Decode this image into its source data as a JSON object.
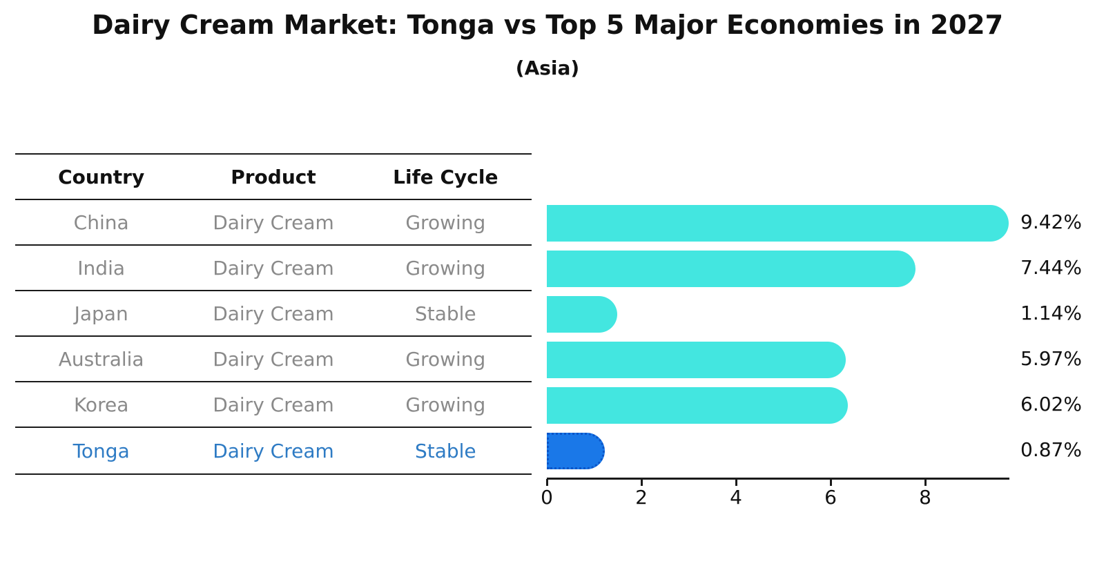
{
  "title": "Dairy Cream Market: Tonga vs Top 5 Major Economies in 2027",
  "subtitle": "(Asia)",
  "table": {
    "headers": [
      "Country",
      "Product",
      "Life Cycle"
    ],
    "rows": [
      {
        "country": "China",
        "product": "Dairy Cream",
        "life_cycle": "Growing",
        "highlight": false
      },
      {
        "country": "India",
        "product": "Dairy Cream",
        "life_cycle": "Growing",
        "highlight": false
      },
      {
        "country": "Japan",
        "product": "Dairy Cream",
        "life_cycle": "Stable",
        "highlight": false
      },
      {
        "country": "Australia",
        "product": "Dairy Cream",
        "life_cycle": "Growing",
        "highlight": false
      },
      {
        "country": "Korea",
        "product": "Dairy Cream",
        "life_cycle": "Growing",
        "highlight": false
      },
      {
        "country": "Tonga",
        "product": "Dairy Cream",
        "life_cycle": "Stable",
        "highlight": true
      }
    ]
  },
  "chart_data": {
    "type": "bar",
    "orientation": "horizontal",
    "title": "Dairy Cream Market: Tonga vs Top 5 Major Economies in 2027",
    "subtitle": "(Asia)",
    "categories": [
      "China",
      "India",
      "Japan",
      "Australia",
      "Korea",
      "Tonga"
    ],
    "values": [
      9.42,
      7.44,
      1.14,
      5.97,
      6.02,
      0.87
    ],
    "value_labels": [
      "9.42%",
      "7.44%",
      "1.14%",
      "5.97%",
      "6.02%",
      "0.87%"
    ],
    "x_ticks": [
      0,
      2,
      4,
      6,
      8
    ],
    "xlim": [
      0,
      9.8
    ],
    "grid": false,
    "legend": false,
    "bar_color": "#43E6E0",
    "highlight_index": 5,
    "highlight_color": "#1A78E8",
    "highlight_border_color": "#0B55C8",
    "highlight_text_color": "#2E7BC4"
  }
}
